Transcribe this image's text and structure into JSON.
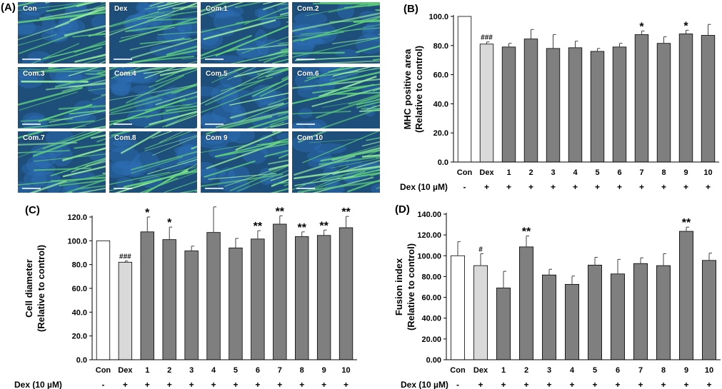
{
  "panels": {
    "a": "(A)",
    "b": "(B)",
    "c": "(C)",
    "d": "(D)"
  },
  "micrographs": {
    "labels": [
      "Con",
      "Dex",
      "Com.1",
      "Com.2",
      "Com.3",
      "Com.4",
      "Com.5",
      "Com.6",
      "Com.7",
      "Com.8",
      "Com 9",
      "Com 10"
    ],
    "colors": {
      "background": "#1d4f7a",
      "nuclei": "#2f6fb8",
      "myotube": "#5fd17a",
      "myotube_bright": "#9af0a0"
    }
  },
  "colors": {
    "con_bar": "#ffffff",
    "dex_bar": "#d9d9d9",
    "com_bar": "#7f7f7f",
    "error_bar": "#404040"
  },
  "chart_data": [
    {
      "id": "B",
      "type": "bar",
      "ylabel_line1": "MHC positive area",
      "ylabel_line2": "(Relative to control)",
      "categories": [
        "Con",
        "Dex",
        "1",
        "2",
        "3",
        "4",
        "5",
        "6",
        "7",
        "8",
        "9",
        "10"
      ],
      "values": [
        100.0,
        81.0,
        79.0,
        84.5,
        78.0,
        78.5,
        76.0,
        79.0,
        87.5,
        81.5,
        88.0,
        87.0
      ],
      "errors": [
        0,
        1.5,
        2.5,
        6.5,
        9.5,
        4.5,
        2.0,
        2.5,
        2.5,
        4.5,
        2.5,
        7.5
      ],
      "annotations": [
        "",
        "###",
        "",
        "",
        "",
        "",
        "",
        "",
        "*",
        "",
        "*",
        ""
      ],
      "ylim": [
        0,
        100
      ],
      "yticks": [
        "0.0",
        "20.0",
        "40.0",
        "60.0",
        "80.0",
        "100.0"
      ],
      "treatment_label": "Dex (10 µM)",
      "treatment_signs": [
        "-",
        "+",
        "+",
        "+",
        "+",
        "+",
        "+",
        "+",
        "+",
        "+",
        "+",
        "+"
      ]
    },
    {
      "id": "C",
      "type": "bar",
      "ylabel_line1": "Cell diameter",
      "ylabel_line2": "(Relative to control)",
      "categories": [
        "Con",
        "Dex",
        "1",
        "2",
        "3",
        "4",
        "5",
        "6",
        "7",
        "8",
        "9",
        "10"
      ],
      "values": [
        100.0,
        82.0,
        107.5,
        101.0,
        91.5,
        107.0,
        94.0,
        101.5,
        114.0,
        103.5,
        104.5,
        111.0
      ],
      "errors": [
        0,
        1.0,
        12.5,
        10.5,
        4.0,
        21.5,
        8.0,
        7.0,
        7.0,
        4.0,
        4.5,
        9.5
      ],
      "annotations": [
        "",
        "###",
        "*",
        "*",
        "",
        "",
        "",
        "**",
        "**",
        "**",
        "**",
        "**"
      ],
      "ylim": [
        0,
        120
      ],
      "yticks": [
        "0.0",
        "20.0",
        "40.0",
        "60.0",
        "80.0",
        "100.0",
        "120.0"
      ],
      "treatment_label": "Dex (10 µM)",
      "treatment_signs": [
        "-",
        "+",
        "+",
        "+",
        "+",
        "+",
        "+",
        "+",
        "+",
        "+",
        "+",
        "+"
      ]
    },
    {
      "id": "D",
      "type": "bar",
      "ylabel_line1": "Fusion index",
      "ylabel_line2": "(Relative to control)",
      "categories": [
        "Con",
        "Dex",
        "1",
        "2",
        "3",
        "4",
        "5",
        "6",
        "7",
        "8",
        "9",
        "10"
      ],
      "values": [
        100.0,
        90.5,
        69.0,
        108.5,
        81.5,
        72.5,
        91.0,
        82.5,
        92.5,
        90.5,
        123.5,
        95.5
      ],
      "errors": [
        13.5,
        11.5,
        16.0,
        10.5,
        5.5,
        8.0,
        7.5,
        14.0,
        5.5,
        11.5,
        4.0,
        7.0
      ],
      "annotations": [
        "",
        "#",
        "",
        "**",
        "",
        "",
        "",
        "",
        "",
        "",
        "**",
        ""
      ],
      "ylim": [
        0,
        140
      ],
      "yticks": [
        "0.00",
        "20.00",
        "40.00",
        "60.00",
        "80.00",
        "100.00",
        "120.00",
        "140.00"
      ],
      "treatment_label": "Dex (10 µM)",
      "treatment_signs": [
        "-",
        "+",
        "+",
        "+",
        "+",
        "+",
        "+",
        "+",
        "+",
        "+",
        "+",
        "+"
      ]
    }
  ]
}
